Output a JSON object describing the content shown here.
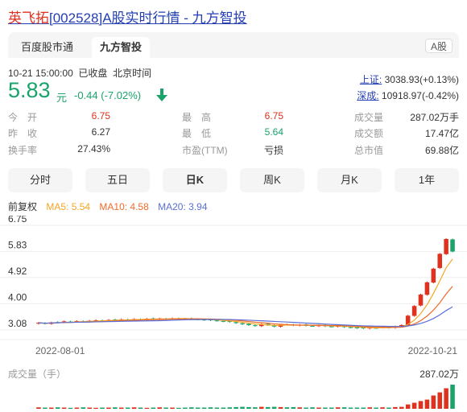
{
  "title": {
    "name": "英飞拓",
    "code": "[002528]",
    "rest": "A股实时行情 - 九方智投"
  },
  "tabs": [
    {
      "label": "百度股市通"
    },
    {
      "label": "九方智投"
    }
  ],
  "market_badge": "A股",
  "status": {
    "time": "10-21 15:00:00",
    "state": "已收盘",
    "tz": "北京时间"
  },
  "quote": {
    "price": "5.83",
    "unit": "元",
    "change": "-0.44",
    "pct": "(-7.02%)"
  },
  "indices": [
    {
      "name": "上证:",
      "value": "3038.93(+0.13%)"
    },
    {
      "name": "深成:",
      "value": "10918.97(-0.42%)"
    }
  ],
  "stats": {
    "open_label": "今　开",
    "open": "6.75",
    "prev_label": "昨　收",
    "prev": "6.27",
    "turn_label": "换手率",
    "turn": "27.43%",
    "high_label": "最　高",
    "high": "6.75",
    "low_label": "最　低",
    "low": "5.64",
    "pe_label": "市盈(TTM)",
    "pe": "亏损",
    "vol_label": "成交量",
    "vol": "287.02万手",
    "amt_label": "成交额",
    "amt": "17.47亿",
    "cap_label": "总市值",
    "cap": "69.88亿"
  },
  "periods": [
    {
      "label": "分时"
    },
    {
      "label": "五日"
    },
    {
      "label": "日K"
    },
    {
      "label": "周K"
    },
    {
      "label": "月K"
    },
    {
      "label": "1年"
    }
  ],
  "ma": {
    "adj": "前复权",
    "ma5": "MA5: 5.54",
    "ma10": "MA10: 4.58",
    "ma20": "MA20: 3.94"
  },
  "colors": {
    "up": "#e0301e",
    "down": "#1aa36b",
    "ma5": "#f5a623",
    "ma10": "#ef6c2b",
    "ma20": "#5b6fd6"
  },
  "chart_data": {
    "type": "candlestick",
    "y_ticks": [
      "6.75",
      "5.83",
      "4.92",
      "4.00",
      "3.08"
    ],
    "ylim": [
      3.08,
      6.75
    ],
    "x_labels": [
      "2022-08-01",
      "2022-10-21"
    ],
    "volume_label": "成交量（手）",
    "volume_max": "287.02万",
    "closes": [
      3.33,
      3.3,
      3.34,
      3.35,
      3.38,
      3.36,
      3.39,
      3.37,
      3.4,
      3.42,
      3.41,
      3.43,
      3.42,
      3.45,
      3.44,
      3.46,
      3.45,
      3.47,
      3.46,
      3.48,
      3.47,
      3.49,
      3.48,
      3.47,
      3.46,
      3.45,
      3.43,
      3.42,
      3.4,
      3.38,
      3.36,
      3.32,
      3.28,
      3.25,
      3.22,
      3.28,
      3.25,
      3.2,
      3.26,
      3.27,
      3.24,
      3.26,
      3.23,
      3.22,
      3.24,
      3.21,
      3.2,
      3.22,
      3.18,
      3.17,
      3.15,
      3.14,
      3.16,
      3.15,
      3.18,
      3.16,
      3.2,
      3.25,
      3.58,
      3.92,
      4.32,
      4.75,
      5.23,
      5.75,
      6.27,
      5.83
    ],
    "volumes": [
      0.06,
      0.05,
      0.05,
      0.06,
      0.05,
      0.04,
      0.05,
      0.06,
      0.05,
      0.04,
      0.05,
      0.05,
      0.06,
      0.05,
      0.05,
      0.06,
      0.05,
      0.04,
      0.05,
      0.06,
      0.05,
      0.05,
      0.04,
      0.05,
      0.06,
      0.05,
      0.05,
      0.06,
      0.05,
      0.05,
      0.06,
      0.07,
      0.08,
      0.07,
      0.06,
      0.08,
      0.07,
      0.08,
      0.07,
      0.06,
      0.07,
      0.06,
      0.05,
      0.06,
      0.05,
      0.05,
      0.05,
      0.06,
      0.06,
      0.05,
      0.05,
      0.05,
      0.06,
      0.05,
      0.06,
      0.05,
      0.07,
      0.08,
      0.18,
      0.25,
      0.32,
      0.38,
      0.55,
      0.68,
      0.85,
      1.0
    ]
  }
}
